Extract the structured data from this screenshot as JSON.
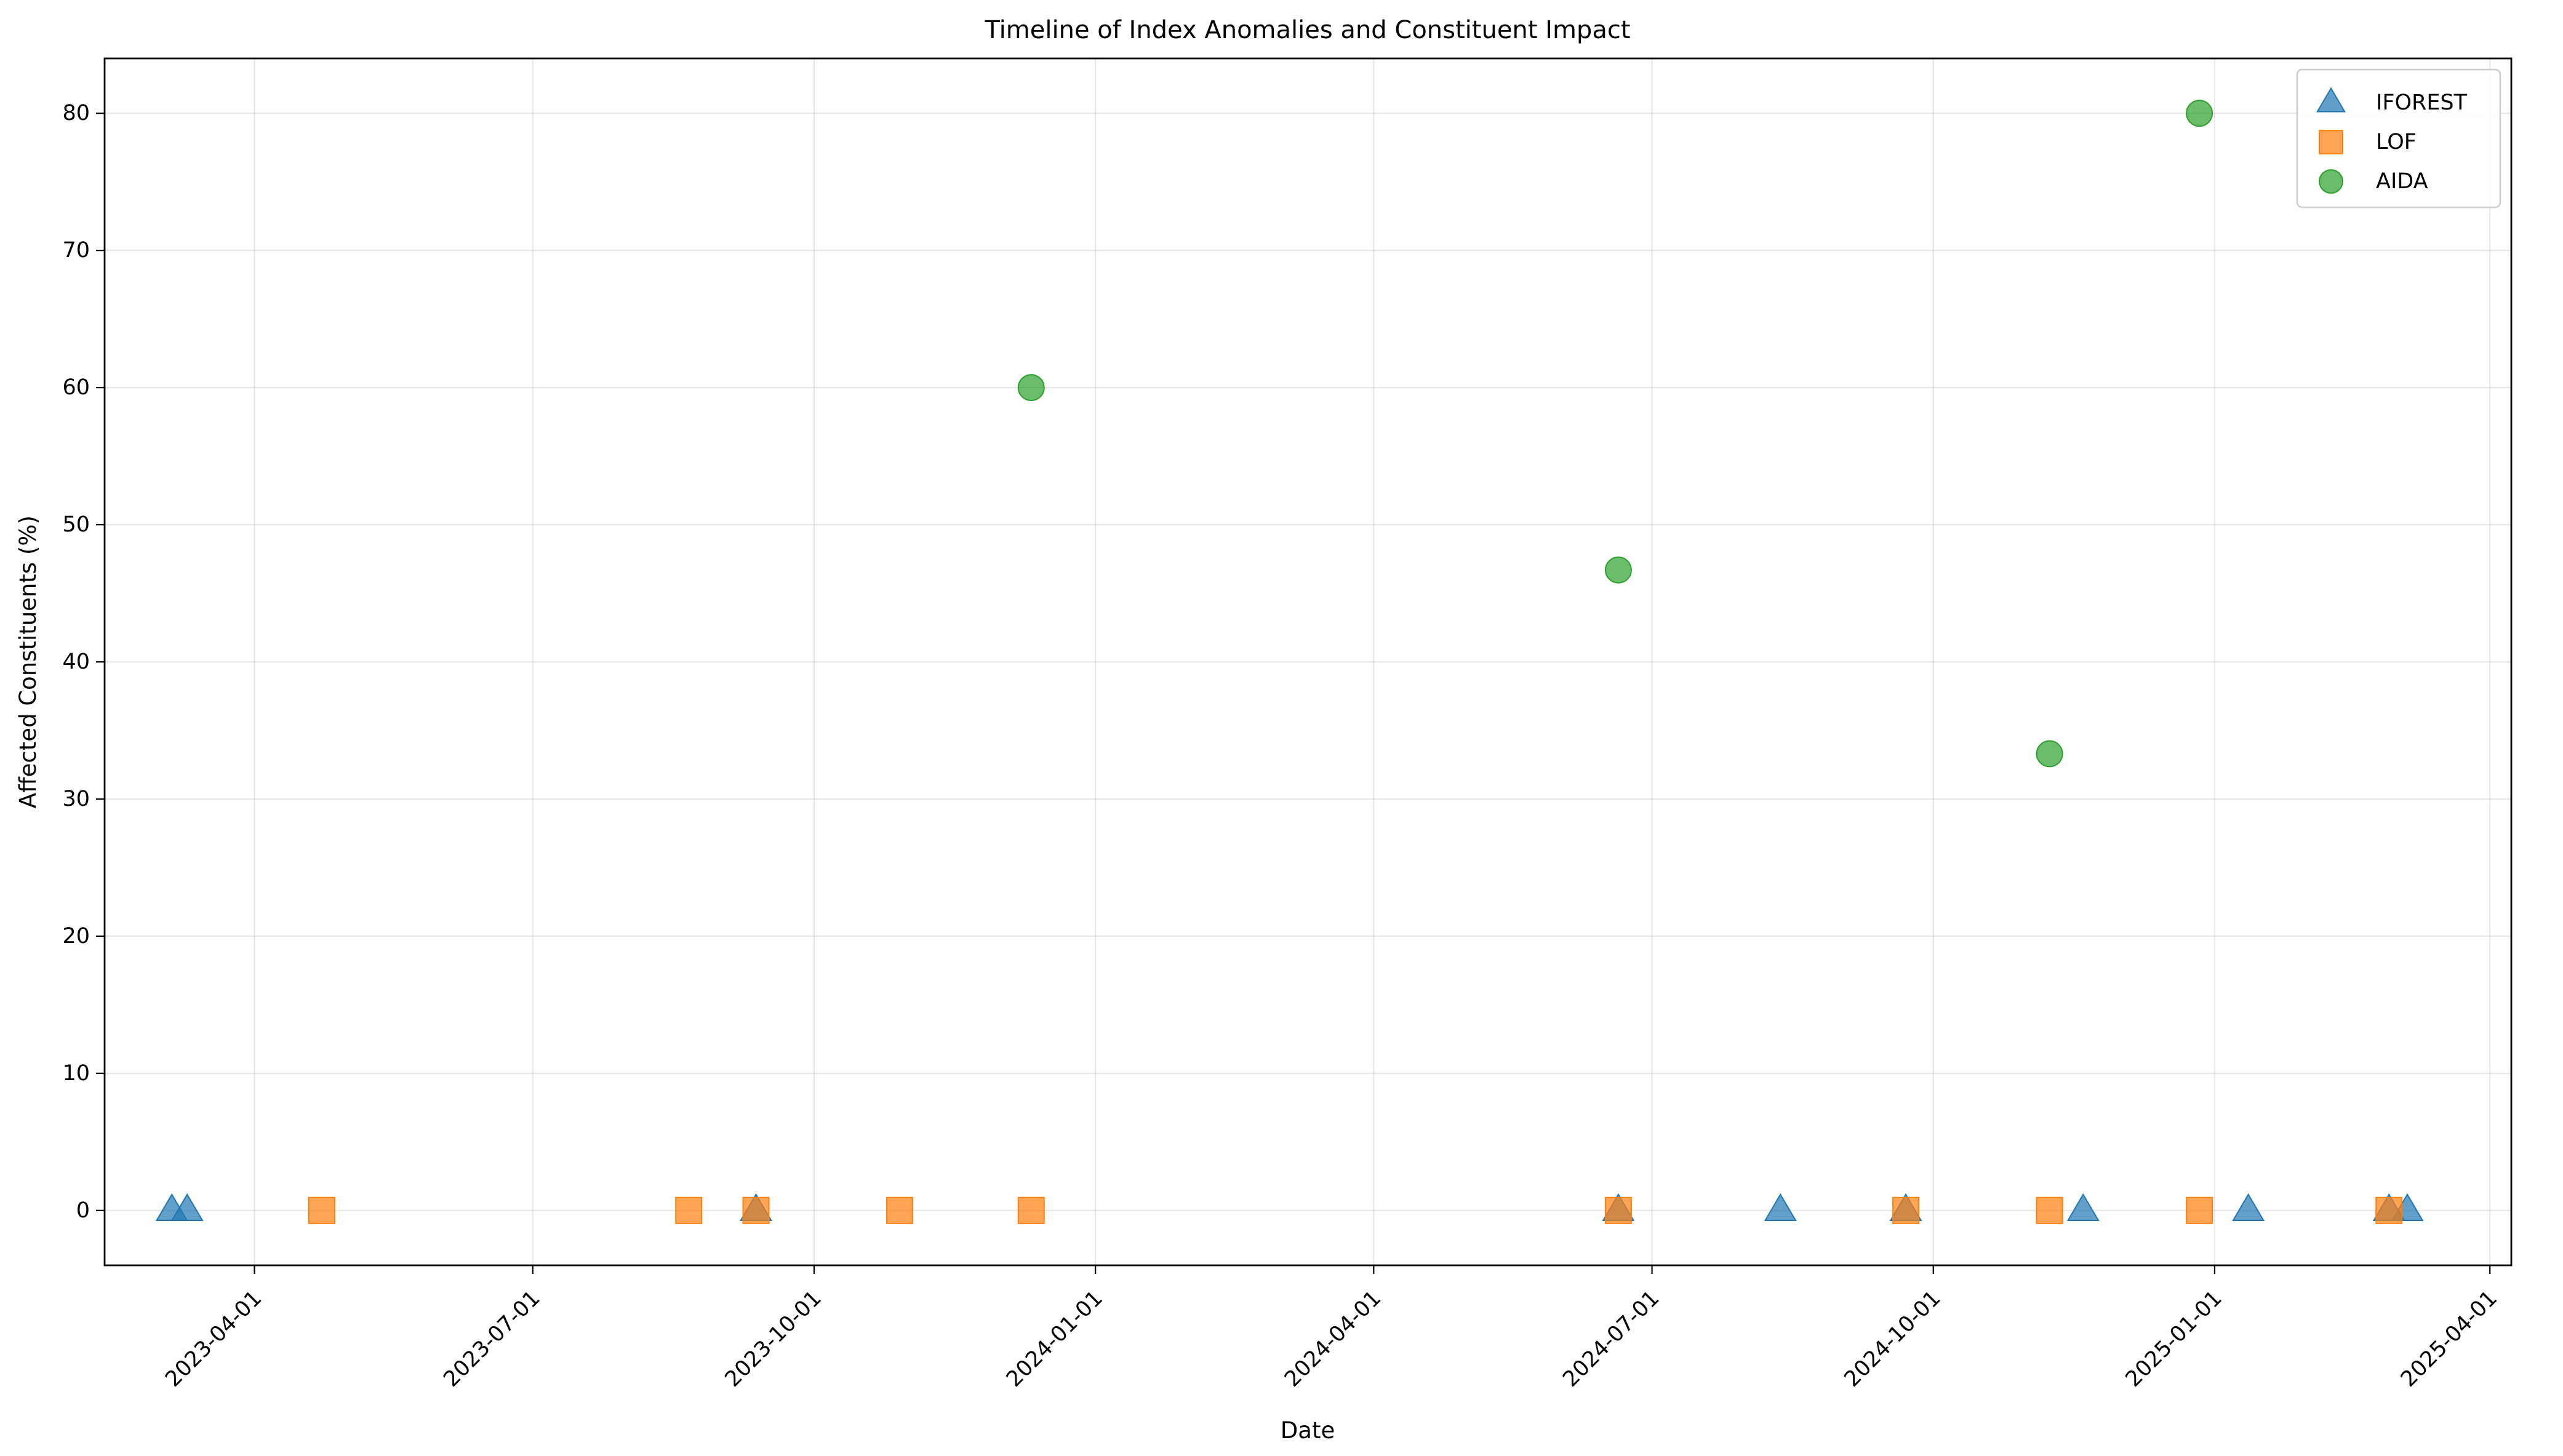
{
  "chart_data": {
    "type": "scatter",
    "title": "Timeline of Index Anomalies and Constituent Impact",
    "xlabel": "Date",
    "ylabel": "Affected Constituents (%)",
    "x_axis_type": "date",
    "xlim": [
      "2023-02-11",
      "2025-04-08"
    ],
    "ylim": [
      -4,
      84
    ],
    "x_ticks": [
      "2023-04-01",
      "2023-07-01",
      "2023-10-01",
      "2024-01-01",
      "2024-04-01",
      "2024-07-01",
      "2024-10-01",
      "2025-01-01",
      "2025-04-01"
    ],
    "y_ticks": [
      0,
      10,
      20,
      30,
      40,
      50,
      60,
      70,
      80
    ],
    "grid": true,
    "legend_position": "top-right",
    "series": [
      {
        "name": "IFOREST",
        "marker": "triangle",
        "color": "#1f77b4",
        "points": [
          {
            "x": "2023-03-05",
            "y": 0
          },
          {
            "x": "2023-03-10",
            "y": 0
          },
          {
            "x": "2023-09-12",
            "y": 0
          },
          {
            "x": "2024-06-20",
            "y": 0
          },
          {
            "x": "2024-08-12",
            "y": 0
          },
          {
            "x": "2024-09-22",
            "y": 0
          },
          {
            "x": "2024-11-19",
            "y": 0
          },
          {
            "x": "2025-01-12",
            "y": 0
          },
          {
            "x": "2025-02-27",
            "y": 0
          },
          {
            "x": "2025-03-05",
            "y": 0
          }
        ]
      },
      {
        "name": "LOF",
        "marker": "square",
        "color": "#ff7f0e",
        "points": [
          {
            "x": "2023-04-23",
            "y": 0
          },
          {
            "x": "2023-08-21",
            "y": 0
          },
          {
            "x": "2023-09-12",
            "y": 0
          },
          {
            "x": "2023-10-29",
            "y": 0
          },
          {
            "x": "2023-12-11",
            "y": 0
          },
          {
            "x": "2024-06-20",
            "y": 0
          },
          {
            "x": "2024-09-22",
            "y": 0
          },
          {
            "x": "2024-11-08",
            "y": 0
          },
          {
            "x": "2024-12-27",
            "y": 0
          },
          {
            "x": "2025-02-27",
            "y": 0
          }
        ]
      },
      {
        "name": "AIDA",
        "marker": "circle",
        "color": "#2ca02c",
        "points": [
          {
            "x": "2023-12-11",
            "y": 60
          },
          {
            "x": "2024-06-20",
            "y": 46.7
          },
          {
            "x": "2024-11-08",
            "y": 33.3
          },
          {
            "x": "2024-12-27",
            "y": 80
          }
        ]
      }
    ]
  }
}
